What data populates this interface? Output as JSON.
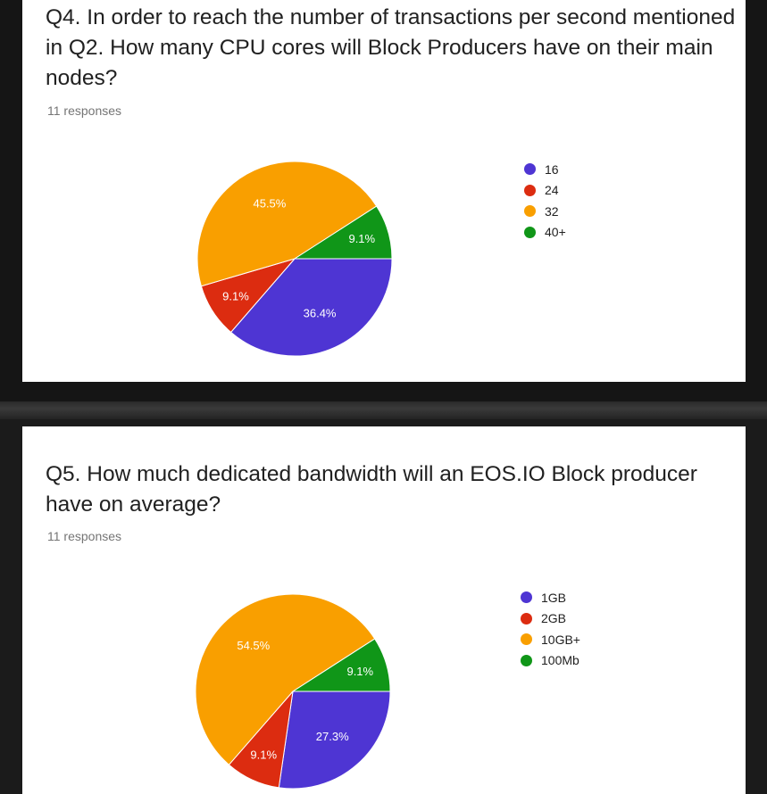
{
  "colors": {
    "blue": "#4e35d3",
    "red": "#dc2c10",
    "orange": "#f99f00",
    "green": "#109618"
  },
  "questions": [
    {
      "title": "Q4. In order to reach the number of transactions per second mentioned in Q2. How many CPU cores will Block Producers have on their main nodes?",
      "responses": "11 responses"
    },
    {
      "title": "Q5. How much dedicated bandwidth will an EOS.IO Block producer have on average?",
      "responses": "11 responses"
    }
  ],
  "chart_data": [
    {
      "type": "pie",
      "slices": [
        {
          "label": "16",
          "value": 36.4,
          "display": "36.4%",
          "color": "#4e35d3"
        },
        {
          "label": "24",
          "value": 9.1,
          "display": "9.1%",
          "color": "#dc2c10"
        },
        {
          "label": "32",
          "value": 45.5,
          "display": "45.5%",
          "color": "#f99f00"
        },
        {
          "label": "40+",
          "value": 9.1,
          "display": "9.1%",
          "color": "#109618"
        }
      ]
    },
    {
      "type": "pie",
      "slices": [
        {
          "label": "1GB",
          "value": 27.3,
          "display": "27.3%",
          "color": "#4e35d3"
        },
        {
          "label": "2GB",
          "value": 9.1,
          "display": "9.1%",
          "color": "#dc2c10"
        },
        {
          "label": "10GB+",
          "value": 54.5,
          "display": "54.5%",
          "color": "#f99f00"
        },
        {
          "label": "100Mb",
          "value": 9.1,
          "display": "9.1%",
          "color": "#109618"
        }
      ]
    }
  ]
}
